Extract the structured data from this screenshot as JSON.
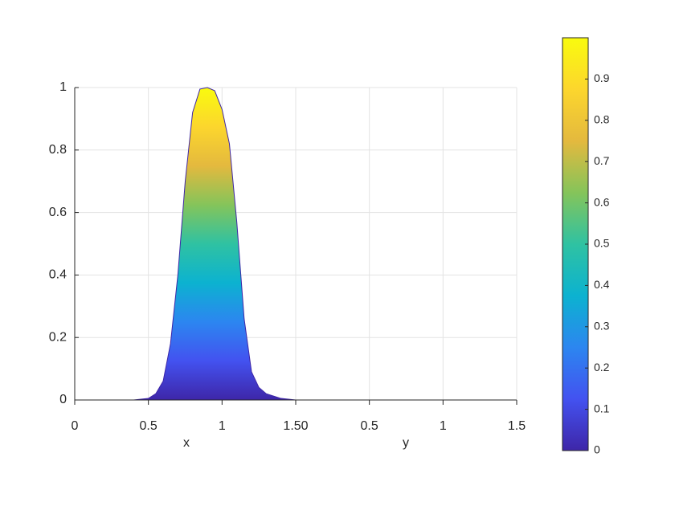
{
  "chart_data": {
    "type": "area",
    "x": [
      0,
      0.4,
      0.5,
      0.55,
      0.6,
      0.65,
      0.7,
      0.75,
      0.8,
      0.85,
      0.9,
      0.95,
      1.0,
      1.05,
      1.1,
      1.15,
      1.2,
      1.25,
      1.3,
      1.4,
      1.5,
      3
    ],
    "values": [
      0,
      0,
      0.005,
      0.02,
      0.06,
      0.18,
      0.4,
      0.7,
      0.92,
      0.995,
      1,
      0.99,
      0.93,
      0.82,
      0.57,
      0.26,
      0.09,
      0.04,
      0.02,
      0.005,
      0,
      0
    ],
    "x_label": "x",
    "y_label": "y",
    "xlim": [
      0,
      3
    ],
    "xticks": [
      0,
      0.5,
      1,
      {
        "value": 1.5,
        "label": "1.50"
      },
      {
        "value": 2,
        "label": "0.5"
      },
      {
        "value": 2.5,
        "label": "1"
      },
      {
        "value": 3,
        "label": "1.5"
      }
    ],
    "ylim": [
      0,
      1
    ],
    "yticks": [
      0,
      0.2,
      0.4,
      0.6,
      0.8,
      1
    ],
    "grid": true,
    "colormap": [
      "#3e26a8",
      "#4352f0",
      "#2c86f0",
      "#0cb2d0",
      "#2fc2a2",
      "#85c45a",
      "#e4b93e",
      "#fcd62d",
      "#f9fb0e"
    ],
    "colorbar": {
      "clim": [
        0,
        1
      ],
      "ticks": [
        0,
        0.1,
        0.2,
        0.3,
        0.4,
        0.5,
        0.6,
        0.7,
        0.8,
        0.9
      ]
    }
  }
}
